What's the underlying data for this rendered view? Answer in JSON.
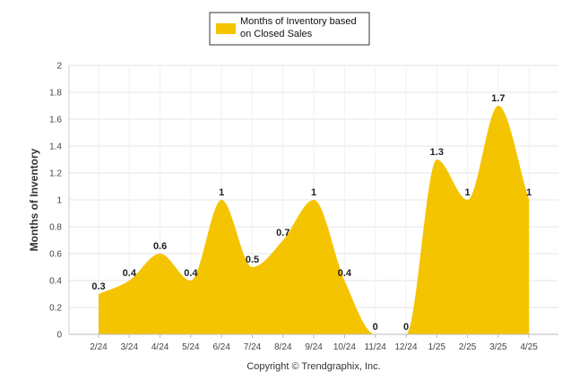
{
  "chart_data": {
    "type": "area",
    "categories": [
      "2/24",
      "3/24",
      "4/24",
      "5/24",
      "6/24",
      "7/24",
      "8/24",
      "9/24",
      "10/24",
      "11/24",
      "12/24",
      "1/25",
      "2/25",
      "3/25",
      "4/25"
    ],
    "series": [
      {
        "name": "Months of Inventory based on Closed Sales",
        "values": [
          0.3,
          0.4,
          0.6,
          0.4,
          1,
          0.5,
          0.7,
          1,
          0.4,
          0,
          0,
          1.3,
          1,
          1.7,
          1
        ],
        "labels": [
          "0.3",
          "0.4",
          "0.6",
          "0.4",
          "1",
          "0.5",
          "0.7",
          "1",
          "0.4",
          "0",
          "0",
          "1.3",
          "1",
          "1.7",
          "1"
        ]
      }
    ],
    "ylabel": "Months of Inventory",
    "ylim": [
      0,
      2
    ],
    "yticks": [
      "0",
      "0.2",
      "0.4",
      "0.6",
      "0.8",
      "1",
      "1.2",
      "1.4",
      "1.6",
      "1.8",
      "2"
    ],
    "grid": true,
    "legend_position": "top-center",
    "colors": {
      "series": "#f5c400",
      "legend_border": "#333333",
      "grid": "#e6e6e6"
    }
  },
  "footer": {
    "copyright": "Copyright © Trendgraphix, Inc."
  }
}
